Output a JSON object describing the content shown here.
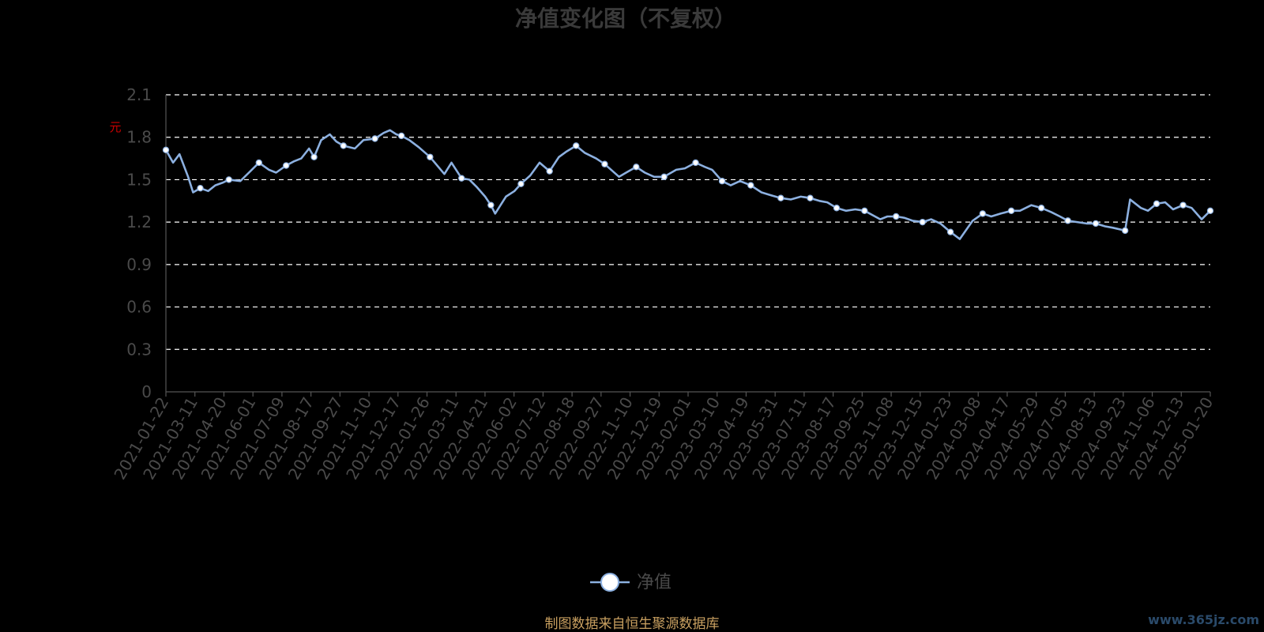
{
  "chart_data": {
    "type": "line",
    "title": "净值变化图（不复权）",
    "ylabel": "元",
    "ylim": [
      0,
      2.1
    ],
    "yticks": [
      "0",
      "0.3",
      "0.6",
      "0.9",
      "1.2",
      "1.5",
      "1.8",
      "2.1"
    ],
    "grid": true,
    "legend_position": "bottom-center",
    "colors": {
      "line": "#8cb0e0",
      "marker_fill": "#ffffff",
      "grid": "#ffffff",
      "text": "#4a4a4a",
      "source": "#c9a060"
    },
    "x_labels": [
      "2021-01-22",
      "2021-03-11",
      "2021-04-20",
      "2021-06-01",
      "2021-07-09",
      "2021-08-17",
      "2021-09-27",
      "2021-11-10",
      "2021-12-17",
      "2022-01-26",
      "2022-03-11",
      "2022-04-21",
      "2022-06-02",
      "2022-07-12",
      "2022-08-18",
      "2022-09-27",
      "2022-11-10",
      "2022-12-19",
      "2023-02-01",
      "2023-03-10",
      "2023-04-19",
      "2023-05-31",
      "2023-07-11",
      "2023-08-17",
      "2023-09-25",
      "2023-11-08",
      "2023-12-15",
      "2024-01-23",
      "2024-03-08",
      "2024-04-17",
      "2024-05-29",
      "2024-07-05",
      "2024-08-13",
      "2024-09-23",
      "2024-11-06",
      "2024-12-13",
      "2025-01-20"
    ],
    "series": [
      {
        "name": "净值",
        "x": [
          "2021-01-22",
          "2021-02-01",
          "2021-02-10",
          "2021-02-22",
          "2021-03-01",
          "2021-03-11",
          "2021-03-22",
          "2021-04-01",
          "2021-04-12",
          "2021-04-20",
          "2021-05-06",
          "2021-05-18",
          "2021-06-01",
          "2021-06-15",
          "2021-06-25",
          "2021-07-09",
          "2021-07-20",
          "2021-07-30",
          "2021-08-10",
          "2021-08-17",
          "2021-08-27",
          "2021-09-08",
          "2021-09-17",
          "2021-09-27",
          "2021-10-13",
          "2021-10-25",
          "2021-11-10",
          "2021-11-22",
          "2021-12-01",
          "2021-12-10",
          "2021-12-17",
          "2021-12-28",
          "2022-01-10",
          "2022-01-26",
          "2022-02-15",
          "2022-02-25",
          "2022-03-11",
          "2022-03-22",
          "2022-04-01",
          "2022-04-13",
          "2022-04-21",
          "2022-04-27",
          "2022-05-12",
          "2022-05-24",
          "2022-06-02",
          "2022-06-15",
          "2022-06-28",
          "2022-07-12",
          "2022-07-25",
          "2022-08-05",
          "2022-08-18",
          "2022-08-30",
          "2022-09-15",
          "2022-09-27",
          "2022-10-17",
          "2022-10-27",
          "2022-11-10",
          "2022-11-22",
          "2022-12-05",
          "2022-12-19",
          "2023-01-05",
          "2023-01-17",
          "2023-02-01",
          "2023-02-14",
          "2023-02-24",
          "2023-03-10",
          "2023-03-22",
          "2023-04-04",
          "2023-04-19",
          "2023-05-04",
          "2023-05-17",
          "2023-05-31",
          "2023-06-14",
          "2023-06-28",
          "2023-07-11",
          "2023-07-24",
          "2023-08-04",
          "2023-08-17",
          "2023-08-30",
          "2023-09-12",
          "2023-09-25",
          "2023-10-17",
          "2023-10-27",
          "2023-11-08",
          "2023-11-20",
          "2023-12-01",
          "2023-12-15",
          "2023-12-27",
          "2024-01-09",
          "2024-01-23",
          "2024-02-05",
          "2024-02-23",
          "2024-03-08",
          "2024-03-20",
          "2024-04-02",
          "2024-04-17",
          "2024-04-29",
          "2024-05-15",
          "2024-05-29",
          "2024-06-12",
          "2024-06-24",
          "2024-07-05",
          "2024-07-18",
          "2024-07-31",
          "2024-08-13",
          "2024-08-26",
          "2024-09-06",
          "2024-09-23",
          "2024-09-30",
          "2024-10-15",
          "2024-10-25",
          "2024-11-06",
          "2024-11-18",
          "2024-11-29",
          "2024-12-13",
          "2024-12-25",
          "2025-01-08",
          "2025-01-20"
        ],
        "values": [
          1.71,
          1.62,
          1.68,
          1.52,
          1.41,
          1.44,
          1.42,
          1.46,
          1.48,
          1.5,
          1.49,
          1.55,
          1.62,
          1.57,
          1.55,
          1.6,
          1.63,
          1.65,
          1.72,
          1.66,
          1.78,
          1.82,
          1.77,
          1.74,
          1.72,
          1.78,
          1.79,
          1.83,
          1.85,
          1.82,
          1.81,
          1.78,
          1.73,
          1.66,
          1.54,
          1.62,
          1.51,
          1.5,
          1.45,
          1.38,
          1.32,
          1.26,
          1.38,
          1.42,
          1.47,
          1.53,
          1.62,
          1.56,
          1.66,
          1.7,
          1.74,
          1.69,
          1.65,
          1.61,
          1.52,
          1.55,
          1.59,
          1.55,
          1.52,
          1.52,
          1.57,
          1.58,
          1.62,
          1.59,
          1.57,
          1.49,
          1.46,
          1.49,
          1.46,
          1.41,
          1.39,
          1.37,
          1.36,
          1.38,
          1.37,
          1.35,
          1.34,
          1.3,
          1.28,
          1.29,
          1.28,
          1.22,
          1.24,
          1.24,
          1.23,
          1.21,
          1.2,
          1.22,
          1.19,
          1.13,
          1.08,
          1.21,
          1.26,
          1.24,
          1.26,
          1.28,
          1.28,
          1.32,
          1.3,
          1.27,
          1.24,
          1.21,
          1.2,
          1.19,
          1.19,
          1.17,
          1.16,
          1.14,
          1.36,
          1.3,
          1.28,
          1.33,
          1.34,
          1.29,
          1.32,
          1.3,
          1.22,
          1.28
        ],
        "markers": [
          0,
          5,
          9,
          12,
          15,
          19,
          23,
          26,
          30,
          33,
          36,
          40,
          44,
          47,
          50,
          53,
          56,
          59,
          62,
          65,
          68,
          71,
          74,
          77,
          80,
          83,
          86,
          89,
          92,
          95,
          98,
          101,
          104,
          107,
          111,
          114,
          117
        ]
      }
    ]
  },
  "source_note": "制图数据来自恒生聚源数据库",
  "watermark": "www.365jz.com"
}
